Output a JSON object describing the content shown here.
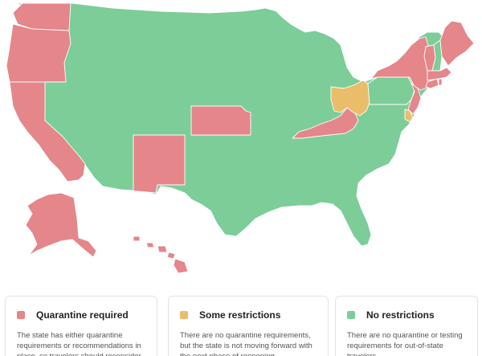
{
  "map": {
    "colors": {
      "quarantine": "#e4868a",
      "some": "#e9bd6a",
      "none": "#7ccd98"
    },
    "states": {
      "WA": "quarantine",
      "OR": "quarantine",
      "CA": "quarantine",
      "AK": "quarantine",
      "HI": "quarantine",
      "NM": "quarantine",
      "KS": "quarantine",
      "KY": "quarantine",
      "NY": "quarantine",
      "NJ": "quarantine",
      "PA": "none",
      "CT": "quarantine",
      "RI": "quarantine",
      "MA": "quarantine",
      "ME": "quarantine",
      "VT": "quarantine",
      "NH": "none",
      "OH": "some",
      "DE": "some"
    }
  },
  "legend": [
    {
      "key": "quarantine",
      "title": "Quarantine required",
      "color": "#e4868a",
      "description": "The state has either quarantine requirements or recommendations in place, so travelers should reconsider their plans to visit."
    },
    {
      "key": "some",
      "title": "Some restrictions",
      "color": "#e9bd6a",
      "description": "There are no quarantine requirements, but the state is not moving forward with the next phase of reopening."
    },
    {
      "key": "none",
      "title": "No restrictions",
      "color": "#7ccd98",
      "description": "There are no quarantine or testing requirements for out-of-state travelers."
    }
  ]
}
